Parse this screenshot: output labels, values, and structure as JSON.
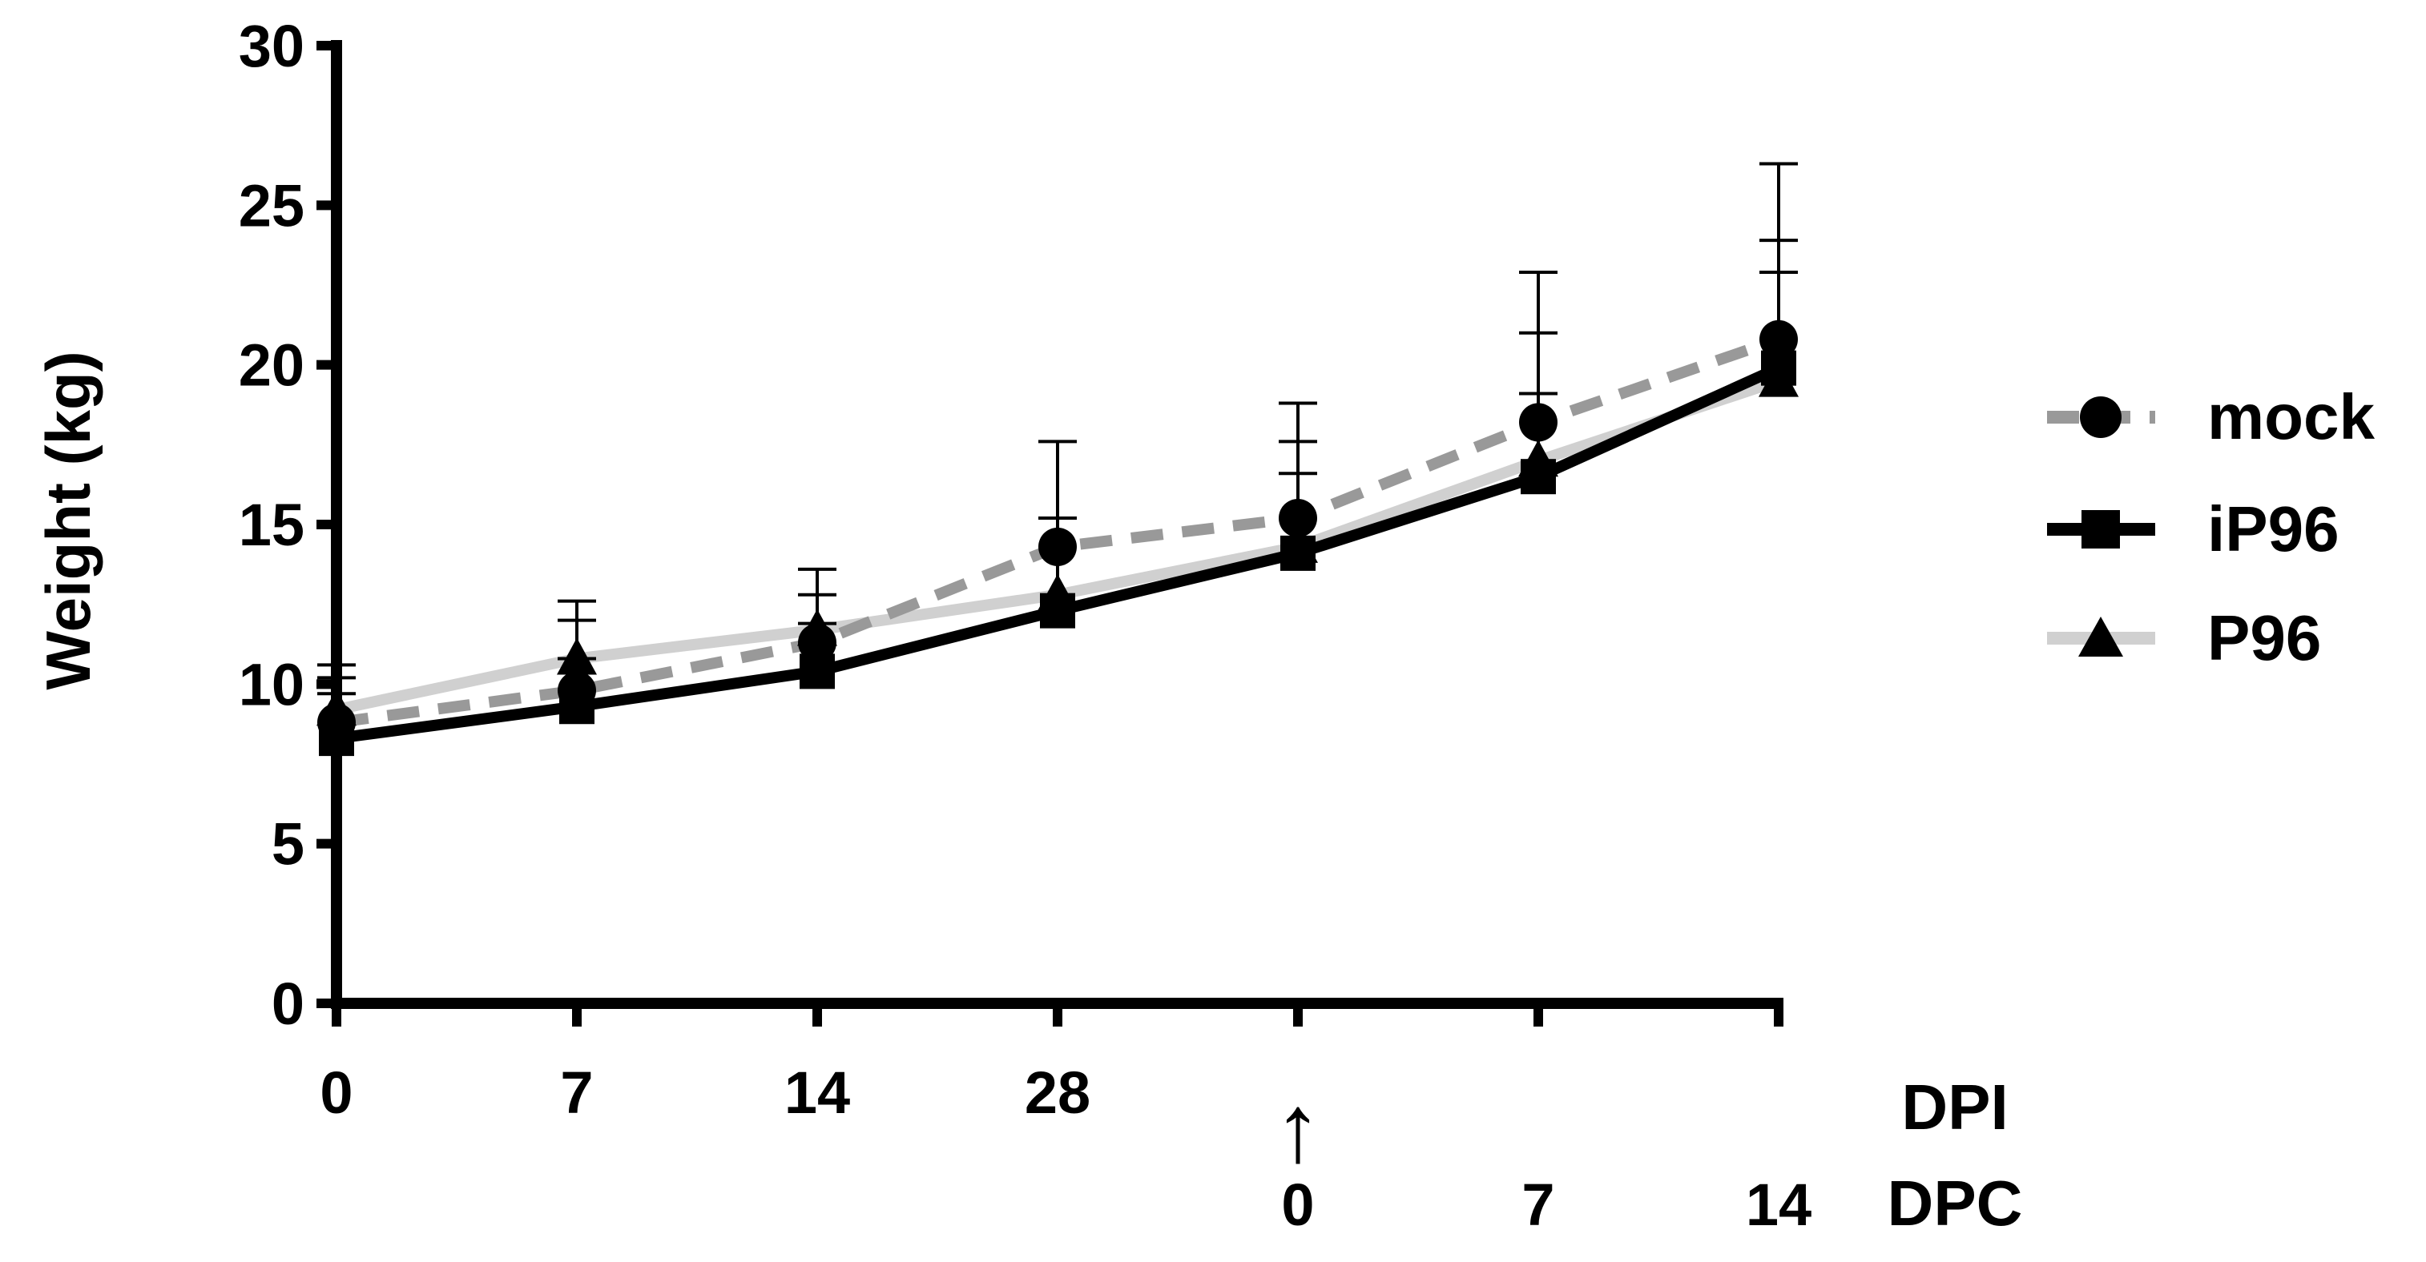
{
  "chart_data": {
    "type": "line",
    "ylabel": "Weight (kg)",
    "ylim": [
      0,
      30
    ],
    "yticks": [
      0,
      5,
      10,
      15,
      20,
      25,
      30
    ],
    "x": [
      0,
      1,
      2,
      3,
      4,
      5,
      6
    ],
    "x_tick_labels_dpi": [
      "0",
      "7",
      "14",
      "28",
      "",
      "",
      ""
    ],
    "x_tick_labels_dpc": [
      "",
      "",
      "",
      "",
      "0",
      "7",
      "14"
    ],
    "challenge_marker": "↑",
    "dpi_label": "DPI",
    "dpc_label": "DPC",
    "legend_position": "right",
    "grid": false,
    "series": [
      {
        "name": "mock",
        "marker": "circle",
        "line_style": "dashed",
        "color": "#999999",
        "marker_color": "#000000",
        "values": [
          8.8,
          9.8,
          11.3,
          14.3,
          15.2,
          18.2,
          20.8
        ],
        "error_upper": [
          10.2,
          12.0,
          13.6,
          17.6,
          18.8,
          22.9,
          26.3
        ]
      },
      {
        "name": "iP96",
        "marker": "square",
        "line_style": "solid",
        "color": "#000000",
        "marker_color": "#000000",
        "values": [
          8.3,
          9.3,
          10.4,
          12.3,
          14.1,
          16.5,
          19.9
        ],
        "error_upper": [
          9.7,
          10.8,
          11.9,
          15.2,
          16.6,
          19.1,
          22.9
        ]
      },
      {
        "name": "P96",
        "marker": "triangle",
        "line_style": "solid",
        "color": "#d0d0d0",
        "marker_color": "#000000",
        "values": [
          9.2,
          10.8,
          11.7,
          12.8,
          14.3,
          17.0,
          19.5
        ],
        "error_upper": [
          10.6,
          12.6,
          12.8,
          15.2,
          17.6,
          21.0,
          23.9
        ]
      }
    ]
  }
}
